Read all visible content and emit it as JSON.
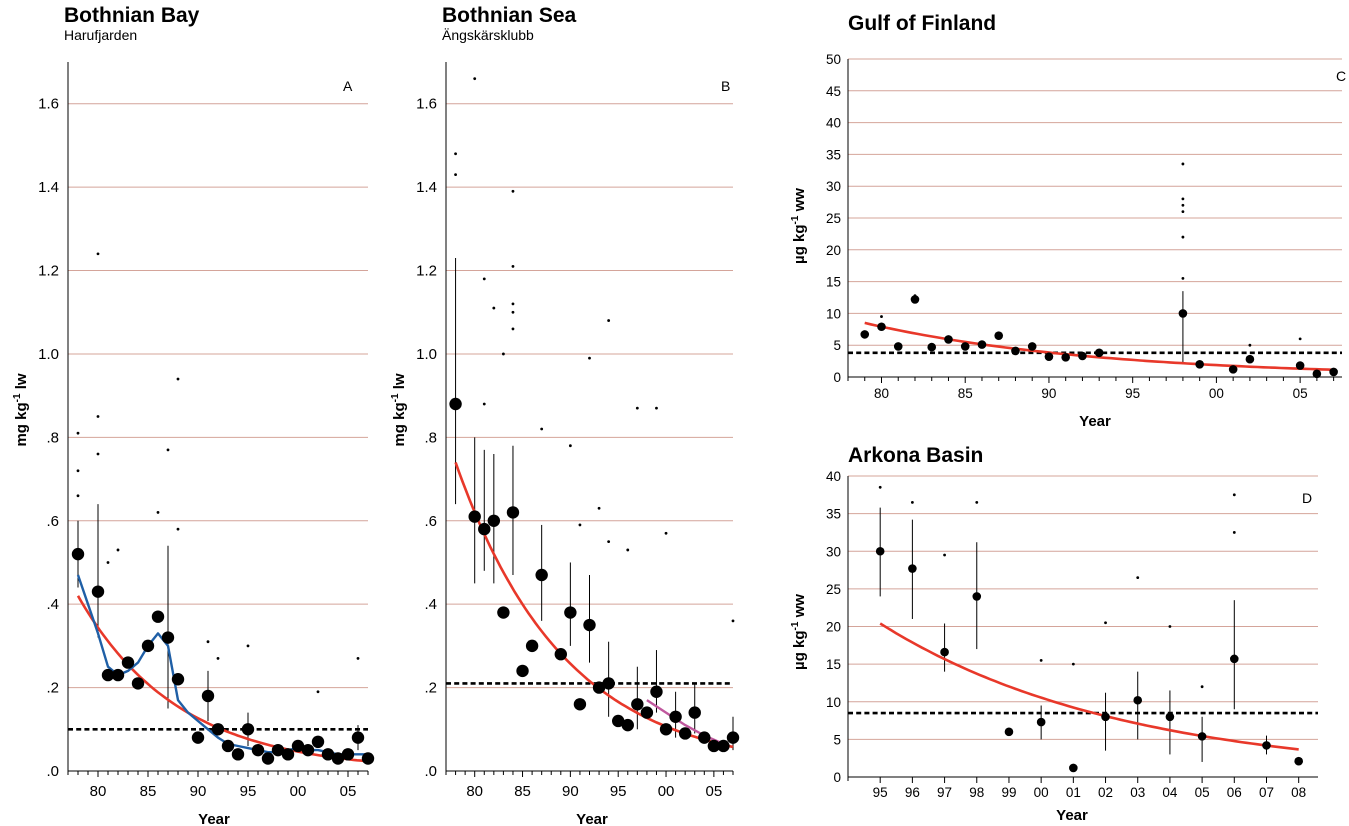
{
  "chart_data": [
    {
      "id": "A",
      "type": "scatter",
      "title": "Bothnian Bay",
      "subtitle": "Harufjarden",
      "panel_letter": "A",
      "xlabel": "Year",
      "ylabel_main": "mg kg",
      "ylabel_sup": "-1",
      "ylabel_unit": " lw",
      "xlim": [
        1977,
        2007
      ],
      "ylim": [
        0,
        1.7
      ],
      "xticks": [
        1980,
        1985,
        1990,
        1995,
        2000,
        2005
      ],
      "xtick_labels": [
        "80",
        "85",
        "90",
        "95",
        "00",
        "05"
      ],
      "yticks": [
        0,
        0.2,
        0.4,
        0.6,
        0.8,
        1.0,
        1.2,
        1.4,
        1.6
      ],
      "ytick_labels": [
        ".0",
        ".2",
        ".4",
        ".6",
        ".8",
        "1.0",
        "1.2",
        "1.4",
        "1.6"
      ],
      "grid": true,
      "threshold": 0.1,
      "means": [
        [
          1978,
          0.52
        ],
        [
          1980,
          0.43
        ],
        [
          1981,
          0.23
        ],
        [
          1982,
          0.23
        ],
        [
          1983,
          0.26
        ],
        [
          1984,
          0.21
        ],
        [
          1985,
          0.3
        ],
        [
          1986,
          0.37
        ],
        [
          1987,
          0.32
        ],
        [
          1988,
          0.22
        ],
        [
          1990,
          0.08
        ],
        [
          1991,
          0.18
        ],
        [
          1992,
          0.1
        ],
        [
          1993,
          0.06
        ],
        [
          1994,
          0.04
        ],
        [
          1995,
          0.1
        ],
        [
          1996,
          0.05
        ],
        [
          1997,
          0.03
        ],
        [
          1998,
          0.05
        ],
        [
          1999,
          0.04
        ],
        [
          2000,
          0.06
        ],
        [
          2001,
          0.05
        ],
        [
          2002,
          0.07
        ],
        [
          2003,
          0.04
        ],
        [
          2004,
          0.03
        ],
        [
          2005,
          0.04
        ],
        [
          2006,
          0.08
        ],
        [
          2007,
          0.03
        ]
      ],
      "errors": [
        [
          1978,
          0.44,
          0.6
        ],
        [
          1980,
          0.32,
          0.64
        ],
        [
          1987,
          0.15,
          0.54
        ],
        [
          1991,
          0.12,
          0.24
        ],
        [
          1995,
          0.06,
          0.14
        ],
        [
          2006,
          0.05,
          0.11
        ]
      ],
      "outliers": [
        [
          1980,
          1.24
        ],
        [
          1980,
          0.85
        ],
        [
          1988,
          0.94
        ],
        [
          1987,
          0.77
        ],
        [
          1978,
          0.81
        ],
        [
          1978,
          0.72
        ],
        [
          1980,
          0.76
        ],
        [
          1978,
          0.66
        ],
        [
          1986,
          0.62
        ],
        [
          1988,
          0.58
        ],
        [
          1981,
          0.5
        ],
        [
          1982,
          0.53
        ],
        [
          1995,
          0.3
        ],
        [
          1991,
          0.31
        ],
        [
          1992,
          0.27
        ],
        [
          2006,
          0.27
        ],
        [
          2002,
          0.19
        ]
      ],
      "fit": {
        "type": "exp",
        "a": 0.42,
        "x0": 1978,
        "k": 0.1,
        "x_range": [
          1978,
          2007
        ],
        "color": "#e8382a"
      },
      "smooth": {
        "color": "#1f5fa6",
        "points": [
          [
            1978,
            0.47
          ],
          [
            1979,
            0.4
          ],
          [
            1980,
            0.33
          ],
          [
            1981,
            0.25
          ],
          [
            1982,
            0.23
          ],
          [
            1983,
            0.24
          ],
          [
            1984,
            0.26
          ],
          [
            1985,
            0.3
          ],
          [
            1986,
            0.33
          ],
          [
            1987,
            0.3
          ],
          [
            1988,
            0.17
          ],
          [
            1989,
            0.14
          ],
          [
            1990,
            0.12
          ],
          [
            1991,
            0.1
          ],
          [
            1992,
            0.08
          ],
          [
            1993,
            0.065
          ],
          [
            1994,
            0.06
          ],
          [
            1995,
            0.055
          ],
          [
            1996,
            0.05
          ],
          [
            1997,
            0.045
          ],
          [
            1998,
            0.045
          ],
          [
            1999,
            0.05
          ],
          [
            2000,
            0.055
          ],
          [
            2001,
            0.05
          ],
          [
            2002,
            0.05
          ],
          [
            2003,
            0.045
          ],
          [
            2004,
            0.04
          ],
          [
            2005,
            0.04
          ],
          [
            2006,
            0.04
          ],
          [
            2007,
            0.04
          ]
        ]
      }
    },
    {
      "id": "B",
      "type": "scatter",
      "title": "Bothnian Sea",
      "subtitle": "Ängskärsklubb",
      "panel_letter": "B",
      "xlabel": "Year",
      "ylabel_main": "mg kg",
      "ylabel_sup": "-1",
      "ylabel_unit": " lw",
      "xlim": [
        1977,
        2007
      ],
      "ylim": [
        0,
        1.7
      ],
      "xticks": [
        1980,
        1985,
        1990,
        1995,
        2000,
        2005
      ],
      "xtick_labels": [
        "80",
        "85",
        "90",
        "95",
        "00",
        "05"
      ],
      "yticks": [
        0,
        0.2,
        0.4,
        0.6,
        0.8,
        1.0,
        1.2,
        1.4,
        1.6
      ],
      "ytick_labels": [
        ".0",
        ".2",
        ".4",
        ".6",
        ".8",
        "1.0",
        "1.2",
        "1.4",
        "1.6"
      ],
      "grid": true,
      "threshold": 0.21,
      "means": [
        [
          1978,
          0.88
        ],
        [
          1980,
          0.61
        ],
        [
          1981,
          0.58
        ],
        [
          1982,
          0.6
        ],
        [
          1983,
          0.38
        ],
        [
          1984,
          0.62
        ],
        [
          1985,
          0.24
        ],
        [
          1986,
          0.3
        ],
        [
          1987,
          0.47
        ],
        [
          1989,
          0.28
        ],
        [
          1990,
          0.38
        ],
        [
          1991,
          0.16
        ],
        [
          1992,
          0.35
        ],
        [
          1993,
          0.2
        ],
        [
          1994,
          0.21
        ],
        [
          1995,
          0.12
        ],
        [
          1996,
          0.11
        ],
        [
          1997,
          0.16
        ],
        [
          1998,
          0.14
        ],
        [
          1999,
          0.19
        ],
        [
          2000,
          0.1
        ],
        [
          2001,
          0.13
        ],
        [
          2002,
          0.09
        ],
        [
          2003,
          0.14
        ],
        [
          2004,
          0.08
        ],
        [
          2005,
          0.06
        ],
        [
          2006,
          0.06
        ],
        [
          2007,
          0.08
        ]
      ],
      "errors": [
        [
          1978,
          0.64,
          1.23
        ],
        [
          1980,
          0.45,
          0.8
        ],
        [
          1981,
          0.48,
          0.77
        ],
        [
          1982,
          0.45,
          0.76
        ],
        [
          1984,
          0.47,
          0.78
        ],
        [
          1987,
          0.36,
          0.59
        ],
        [
          1990,
          0.3,
          0.5
        ],
        [
          1992,
          0.26,
          0.47
        ],
        [
          1994,
          0.13,
          0.31
        ],
        [
          1997,
          0.1,
          0.25
        ],
        [
          1999,
          0.14,
          0.29
        ],
        [
          2001,
          0.08,
          0.19
        ],
        [
          2003,
          0.09,
          0.21
        ],
        [
          2007,
          0.05,
          0.13
        ]
      ],
      "outliers": [
        [
          1980,
          1.66
        ],
        [
          1978,
          1.48
        ],
        [
          1978,
          1.43
        ],
        [
          1984,
          1.39
        ],
        [
          1984,
          1.21
        ],
        [
          1981,
          1.18
        ],
        [
          1984,
          1.12
        ],
        [
          1984,
          1.1
        ],
        [
          1982,
          1.11
        ],
        [
          1984,
          1.06
        ],
        [
          1994,
          1.08
        ],
        [
          1983,
          1.0
        ],
        [
          1992,
          0.99
        ],
        [
          1981,
          0.88
        ],
        [
          1997,
          0.87
        ],
        [
          1999,
          0.87
        ],
        [
          1987,
          0.82
        ],
        [
          1990,
          0.78
        ],
        [
          1993,
          0.63
        ],
        [
          1994,
          0.55
        ],
        [
          2000,
          0.57
        ],
        [
          1996,
          0.53
        ],
        [
          1991,
          0.59
        ],
        [
          2007,
          0.36
        ]
      ],
      "fit": {
        "type": "exp",
        "a": 0.74,
        "x0": 1978,
        "k": 0.088,
        "x_range": [
          1978,
          2007
        ],
        "color": "#e8382a"
      },
      "smooth": {
        "color": "#c0589e",
        "points": [
          [
            1998,
            0.17
          ],
          [
            2000,
            0.14
          ],
          [
            2002,
            0.11
          ],
          [
            2004,
            0.085
          ],
          [
            2006,
            0.065
          ]
        ]
      }
    },
    {
      "id": "C",
      "type": "scatter",
      "title": "Gulf of Finland",
      "subtitle": "",
      "panel_letter": "C",
      "xlabel": "Year",
      "ylabel_main": "µg kg",
      "ylabel_sup": "-1",
      "ylabel_unit": " ww",
      "xlim": [
        1978,
        2007.5
      ],
      "ylim": [
        0,
        50
      ],
      "xticks": [
        1980,
        1985,
        1990,
        1995,
        2000,
        2005
      ],
      "xtick_labels": [
        "80",
        "85",
        "90",
        "95",
        "00",
        "05"
      ],
      "yticks": [
        0,
        5,
        10,
        15,
        20,
        25,
        30,
        35,
        40,
        45,
        50
      ],
      "ytick_labels": [
        "0",
        "5",
        "10",
        "15",
        "20",
        "25",
        "30",
        "35",
        "40",
        "45",
        "50"
      ],
      "grid": true,
      "threshold": 3.8,
      "means": [
        [
          1979,
          6.7
        ],
        [
          1980,
          7.9
        ],
        [
          1981,
          4.8
        ],
        [
          1982,
          12.2
        ],
        [
          1983,
          4.7
        ],
        [
          1984,
          5.9
        ],
        [
          1985,
          4.8
        ],
        [
          1986,
          5.1
        ],
        [
          1987,
          6.5
        ],
        [
          1988,
          4.1
        ],
        [
          1989,
          4.8
        ],
        [
          1990,
          3.2
        ],
        [
          1991,
          3.1
        ],
        [
          1992,
          3.3
        ],
        [
          1993,
          3.8
        ],
        [
          1998,
          10.0
        ],
        [
          1999,
          2.0
        ],
        [
          2001,
          1.2
        ],
        [
          2002,
          2.8
        ],
        [
          2005,
          1.8
        ],
        [
          2006,
          0.5
        ],
        [
          2007,
          0.8
        ]
      ],
      "errors": [
        [
          1998,
          2.0,
          13.5
        ]
      ],
      "outliers": [
        [
          1998,
          33.5
        ],
        [
          1998,
          28.0
        ],
        [
          1998,
          27.0
        ],
        [
          1998,
          26.0
        ],
        [
          1998,
          22.0
        ],
        [
          1998,
          15.5
        ],
        [
          1980,
          9.5
        ],
        [
          1982,
          12.8
        ],
        [
          2005,
          6.0
        ],
        [
          2002,
          5.0
        ]
      ],
      "fit": {
        "type": "exp",
        "a": 8.5,
        "x0": 1979,
        "k": 0.072,
        "x_range": [
          1979,
          2007
        ],
        "color": "#e8382a"
      }
    },
    {
      "id": "D",
      "type": "scatter",
      "title": "Arkona Basin",
      "subtitle": "",
      "panel_letter": "D",
      "xlabel": "Year",
      "ylabel_main": "µg kg",
      "ylabel_sup": "-1",
      "ylabel_unit": " ww",
      "xlim": [
        1994,
        2008.6
      ],
      "ylim": [
        0,
        40
      ],
      "xticks": [
        1995,
        1996,
        1997,
        1998,
        1999,
        2000,
        2001,
        2002,
        2003,
        2004,
        2005,
        2006,
        2007,
        2008
      ],
      "xtick_labels": [
        "95",
        "96",
        "97",
        "98",
        "99",
        "00",
        "01",
        "02",
        "03",
        "04",
        "05",
        "06",
        "07",
        "08"
      ],
      "yticks": [
        0,
        5,
        10,
        15,
        20,
        25,
        30,
        35,
        40
      ],
      "ytick_labels": [
        "0",
        "5",
        "10",
        "15",
        "20",
        "25",
        "30",
        "35",
        "40"
      ],
      "grid": true,
      "threshold": 8.5,
      "means": [
        [
          1995,
          30.0
        ],
        [
          1996,
          27.7
        ],
        [
          1997,
          16.6
        ],
        [
          1998,
          24.0
        ],
        [
          1999,
          6.0
        ],
        [
          2000,
          7.3
        ],
        [
          2001,
          1.2
        ],
        [
          2002,
          8.0
        ],
        [
          2003,
          10.2
        ],
        [
          2004,
          8.0
        ],
        [
          2005,
          5.4
        ],
        [
          2006,
          15.7
        ],
        [
          2007,
          4.2
        ],
        [
          2008,
          2.1
        ]
      ],
      "errors": [
        [
          1995,
          24.0,
          35.8
        ],
        [
          1996,
          21.0,
          34.2
        ],
        [
          1997,
          14.0,
          20.4
        ],
        [
          1998,
          17.0,
          31.2
        ],
        [
          2000,
          5.0,
          9.5
        ],
        [
          2002,
          3.5,
          11.2
        ],
        [
          2003,
          5.0,
          14.0
        ],
        [
          2004,
          3.0,
          11.5
        ],
        [
          2005,
          2.0,
          8.0
        ],
        [
          2006,
          9.0,
          23.5
        ],
        [
          2007,
          3.0,
          5.5
        ]
      ],
      "outliers": [
        [
          1995,
          38.5
        ],
        [
          1996,
          36.5
        ],
        [
          1997,
          29.5
        ],
        [
          1998,
          36.5
        ],
        [
          2006,
          37.5
        ],
        [
          2006,
          32.5
        ],
        [
          2003,
          26.5
        ],
        [
          2002,
          20.5
        ],
        [
          2004,
          20.0
        ],
        [
          2001,
          15.0
        ],
        [
          2000,
          15.5
        ],
        [
          2005,
          12.0
        ]
      ],
      "fit": {
        "type": "exp",
        "a": 20.4,
        "x0": 1995,
        "k": 0.132,
        "x_range": [
          1995,
          2008
        ],
        "color": "#e8382a"
      }
    }
  ]
}
